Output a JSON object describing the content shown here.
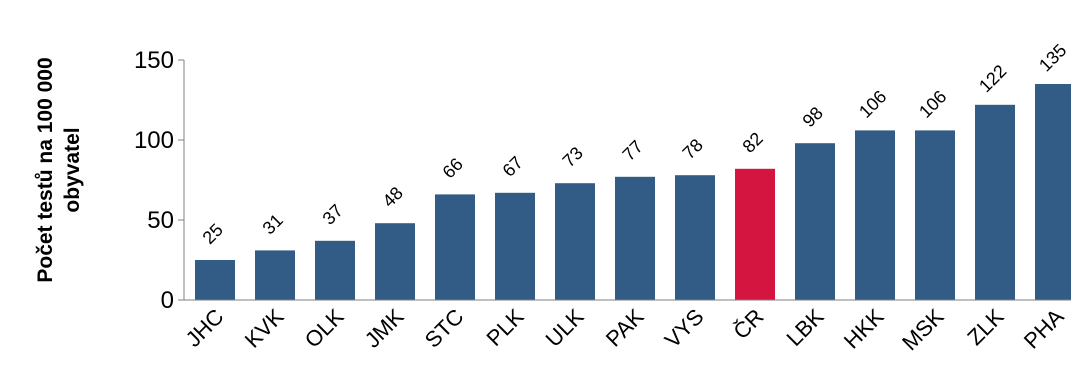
{
  "chart_data": {
    "type": "bar",
    "categories": [
      "JHC",
      "KVK",
      "OLK",
      "JMK",
      "STC",
      "PLK",
      "ULK",
      "PAK",
      "VYS",
      "ČR",
      "LBK",
      "HKK",
      "MSK",
      "ZLK",
      "PHA"
    ],
    "values": [
      25,
      31,
      37,
      48,
      66,
      67,
      73,
      77,
      78,
      82,
      98,
      106,
      106,
      122,
      135
    ],
    "data_labels": [
      "25",
      "31",
      "37",
      "48",
      "66",
      "67",
      "73",
      "77",
      "78",
      "82",
      "98",
      "106",
      "106",
      "122",
      "135"
    ],
    "ylabel": [
      "Počet testů na 100 000",
      "obyvatel"
    ],
    "ylim": [
      0,
      150
    ],
    "yticks": [
      "0",
      "50",
      "100",
      "150"
    ],
    "ytick_values": [
      0,
      50,
      100,
      150
    ],
    "grid": false,
    "colors": {
      "bar": "#325b86",
      "highlight": "#d4153f",
      "axis": "#808080"
    },
    "highlight_category": "ČR"
  }
}
